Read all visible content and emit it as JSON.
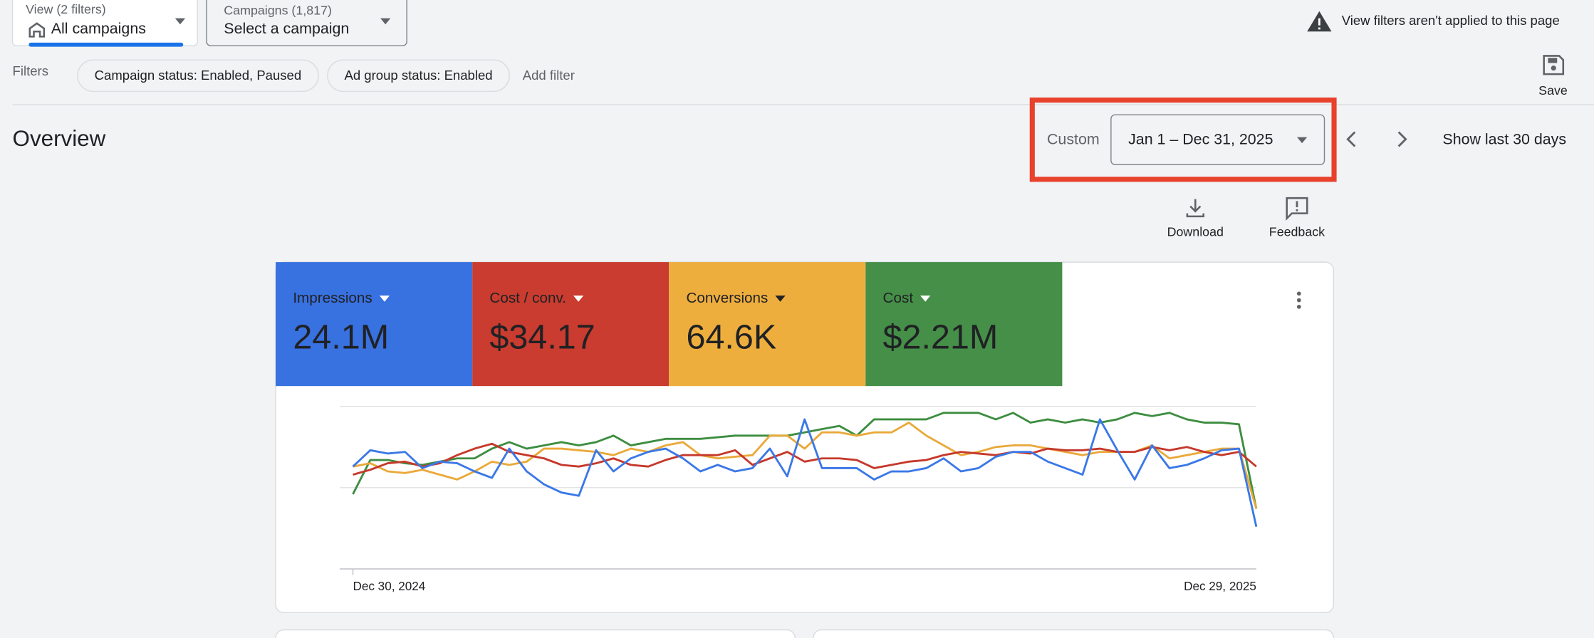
{
  "header": {
    "view_label": "View (2 filters)",
    "view_value": "All campaigns",
    "campaigns_label": "Campaigns (1,817)",
    "campaigns_value": "Select a campaign",
    "notice": "View filters aren't applied to this page"
  },
  "filters": {
    "label": "Filters",
    "chips": [
      "Campaign status: Enabled, Paused",
      "Ad group status: Enabled"
    ],
    "add": "Add filter",
    "save": "Save"
  },
  "overview": {
    "title": "Overview",
    "range_type": "Custom",
    "date_range": "Jan 1 – Dec 31, 2025",
    "show_last": "Show last 30 days",
    "download": "Download",
    "feedback": "Feedback"
  },
  "chart_data": {
    "type": "line",
    "categories": [
      "Dec 30, 2024",
      null,
      null,
      null,
      null,
      null,
      null,
      null,
      null,
      null,
      null,
      null,
      null,
      null,
      null,
      null,
      null,
      null,
      null,
      null,
      null,
      null,
      null,
      null,
      null,
      null,
      null,
      null,
      null,
      null,
      null,
      null,
      null,
      null,
      null,
      null,
      null,
      null,
      null,
      null,
      null,
      null,
      null,
      null,
      null,
      null,
      null,
      null,
      null,
      null,
      null,
      null,
      "Dec 29, 2025"
    ],
    "series": [
      {
        "name": "Impressions",
        "total": "24.1M",
        "color": "#3b78e7",
        "card_color": "#3871e0",
        "values": [
          63,
          73,
          71,
          72,
          62,
          66,
          65,
          60,
          56,
          74,
          60,
          52,
          47,
          45,
          73,
          60,
          68,
          72,
          74,
          68,
          60,
          64,
          60,
          62,
          74,
          57,
          92,
          62,
          62,
          62,
          55,
          60,
          60,
          62,
          68,
          60,
          62,
          69,
          72,
          72,
          66,
          62,
          58,
          92,
          73,
          55,
          76,
          62,
          64,
          68,
          73,
          74,
          26
        ]
      },
      {
        "name": "Cost / conv.",
        "total": "$34.17",
        "color": "#c5392b",
        "card_color": "#c93c2f",
        "values": [
          58,
          61,
          65,
          66,
          63,
          65,
          70,
          74,
          77,
          72,
          70,
          68,
          64,
          63,
          65,
          68,
          64,
          63,
          67,
          70,
          70,
          70,
          73,
          64,
          68,
          72,
          66,
          68,
          68,
          67,
          62,
          64,
          66,
          67,
          70,
          72,
          71,
          70,
          72,
          71,
          74,
          73,
          73,
          74,
          72,
          72,
          75,
          73,
          75,
          72,
          70,
          72,
          63
        ]
      },
      {
        "name": "Conversions",
        "total": "64.6K",
        "color": "#eaa93a",
        "card_color": "#eeae3e",
        "values": [
          63,
          65,
          60,
          59,
          61,
          58,
          55,
          60,
          66,
          64,
          66,
          74,
          74,
          73,
          72,
          70,
          74,
          72,
          76,
          78,
          70,
          68,
          69,
          70,
          82,
          82,
          74,
          84,
          84,
          82,
          84,
          84,
          90,
          82,
          76,
          70,
          72,
          75,
          76,
          76,
          74,
          72,
          70,
          72,
          72,
          72,
          76,
          68,
          70,
          72,
          74,
          74,
          37
        ]
      },
      {
        "name": "Cost",
        "total": "$2.21M",
        "color": "#3d8d40",
        "card_color": "#458f48",
        "values": [
          46,
          67,
          67,
          65,
          64,
          66,
          68,
          68,
          74,
          78,
          74,
          76,
          78,
          76,
          78,
          82,
          76,
          78,
          80,
          80,
          80,
          81,
          82,
          82,
          82,
          82,
          84,
          86,
          88,
          82,
          92,
          92,
          92,
          92,
          96,
          96,
          96,
          92,
          96,
          90,
          92,
          90,
          92,
          90,
          92,
          96,
          94,
          96,
          92,
          90,
          90,
          89,
          37
        ]
      }
    ],
    "ylim": [
      0,
      100
    ],
    "yticks": [
      0,
      50,
      100
    ],
    "grid": true
  }
}
